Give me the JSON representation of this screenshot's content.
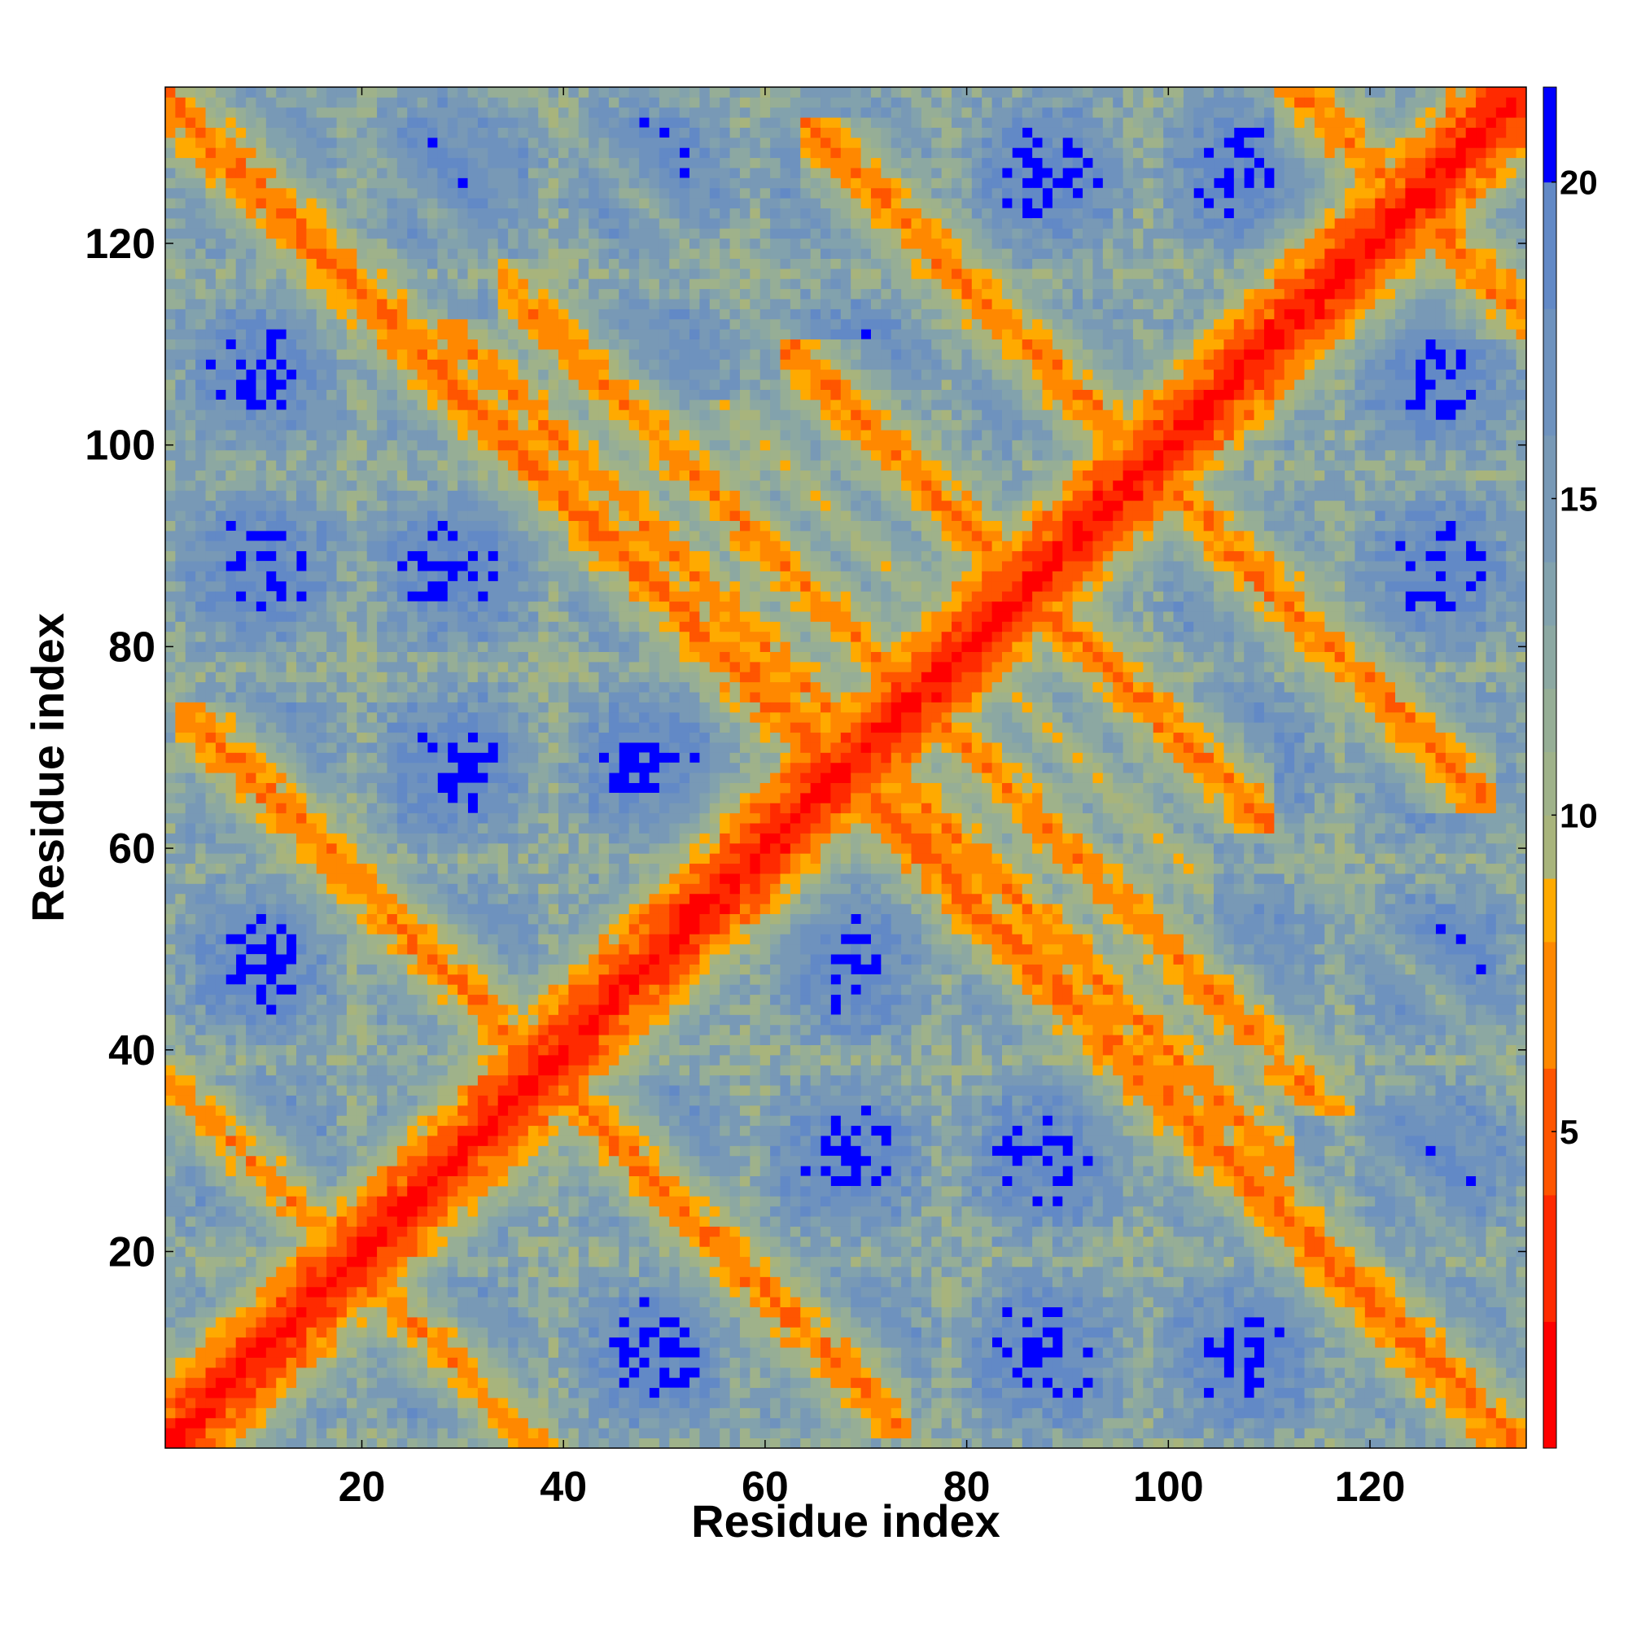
{
  "chart_data": {
    "type": "heatmap",
    "title": "",
    "xlabel": "Residue index",
    "ylabel": "Residue index",
    "n_residues": 135,
    "xlim": [
      1,
      135
    ],
    "ylim": [
      1,
      135
    ],
    "x_ticks": [
      20,
      40,
      60,
      80,
      100,
      120
    ],
    "x_tick_labels": [
      "20",
      "40",
      "60",
      "80",
      "100",
      "120"
    ],
    "y_ticks": [
      20,
      40,
      60,
      80,
      100,
      120
    ],
    "y_tick_labels": [
      "20",
      "40",
      "60",
      "80",
      "100",
      "120"
    ],
    "colorbar": {
      "range": [
        0,
        21.5
      ],
      "ticks": [
        5,
        10,
        15,
        20
      ],
      "tick_labels": [
        "5",
        "10",
        "15",
        "20"
      ],
      "saturated_color": "#0000ff",
      "levels": [
        {
          "max": 2,
          "color": "#ff0000"
        },
        {
          "max": 4,
          "color": "#ff2a00"
        },
        {
          "max": 6,
          "color": "#ff5500"
        },
        {
          "max": 8,
          "color": "#ff8800"
        },
        {
          "max": 9,
          "color": "#ffaa00"
        },
        {
          "max": 10,
          "color": "#a8b47c"
        },
        {
          "max": 11,
          "color": "#9fb28a"
        },
        {
          "max": 12,
          "color": "#96ae96"
        },
        {
          "max": 13,
          "color": "#8ca8a2"
        },
        {
          "max": 14,
          "color": "#82a2ad"
        },
        {
          "max": 16,
          "color": "#7899b6"
        },
        {
          "max": 18,
          "color": "#6e92be"
        },
        {
          "max": 20,
          "color": "#6289c6"
        },
        {
          "max": 21.5,
          "color": "#0000ff"
        }
      ]
    },
    "structure": {
      "description_of_pattern": "symmetric contact/distance map: main diagonal i=j near 0, antiparallel strands perpendicular to diagonal",
      "antiparallel_pairs": [
        {
          "sum": 135,
          "range": [
            1,
            135
          ],
          "distance": 5.5
        },
        {
          "sum": 136,
          "range": [
            60,
            76
          ],
          "distance": 5.5
        },
        {
          "sum": 140,
          "range": [
            30,
            110
          ],
          "distance": 6.5
        },
        {
          "sum": 172,
          "range": [
            64,
            108
          ],
          "distance": 6.0
        },
        {
          "sum": 196,
          "range": [
            66,
            130
          ],
          "distance": 6.0
        },
        {
          "sum": 76,
          "range": [
            4,
            72
          ],
          "distance": 6.0
        },
        {
          "sum": 150,
          "range": [
            36,
            116
          ],
          "distance": 6.5
        },
        {
          "sum": 248,
          "range": [
            113,
            135
          ],
          "distance": 6.0
        },
        {
          "sum": 160,
          "range": [
            28,
            102
          ],
          "distance": 9.5
        },
        {
          "sum": 38,
          "range": [
            1,
            37
          ],
          "distance": 7.0
        }
      ]
    }
  }
}
